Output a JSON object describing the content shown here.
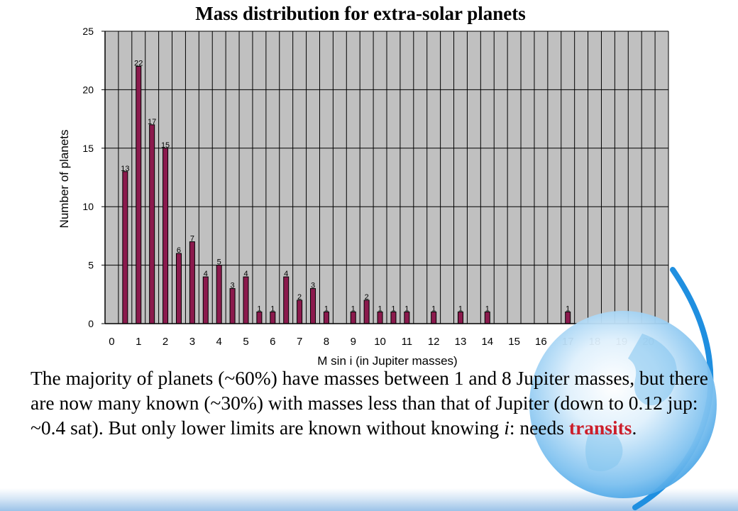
{
  "chart_data": {
    "type": "bar",
    "title": "Mass distribution for extra-solar planets",
    "xlabel": "M sin i (in Jupiter masses)",
    "ylabel": "Number of planets",
    "ylim": [
      0,
      25
    ],
    "xlim": [
      -0.25,
      20.75
    ],
    "yticks": [
      "0",
      "5",
      "10",
      "15",
      "20",
      "25"
    ],
    "xticks": [
      "0",
      "1",
      "2",
      "3",
      "4",
      "5",
      "6",
      "7",
      "8",
      "9",
      "10",
      "11",
      "12",
      "13",
      "14",
      "15",
      "16",
      "17",
      "18",
      "19",
      "20"
    ],
    "grid": true,
    "legend": "none",
    "bar_color": "#8b1a4d",
    "plot_background": "#c0c0c0",
    "bin_width": 0.5,
    "x": [
      0.5,
      1.0,
      1.5,
      2.0,
      2.5,
      3.0,
      3.5,
      4.0,
      4.5,
      5.0,
      5.5,
      6.0,
      6.5,
      7.0,
      7.5,
      8.0,
      8.5,
      9.0,
      9.5,
      10.0,
      10.5,
      11.0,
      11.5,
      12.0,
      12.5,
      13.0,
      13.5,
      14.0,
      14.5,
      15.0,
      15.5,
      16.0,
      16.5,
      17.0,
      17.5,
      18.0,
      18.5,
      19.0,
      19.5,
      20.0
    ],
    "values": [
      13,
      22,
      17,
      15,
      6,
      7,
      4,
      5,
      3,
      4,
      1,
      1,
      4,
      2,
      3,
      1,
      0,
      1,
      2,
      1,
      1,
      1,
      0,
      1,
      0,
      1,
      0,
      1,
      0,
      0,
      0,
      0,
      0,
      1,
      0,
      0,
      0,
      0,
      0,
      0
    ]
  },
  "caption": {
    "part1": "The majority of planets (~60%) have masses between 1 and 8 Jupiter masses, but there are now many known (~30%) with masses less than that of Jupiter (down to 0.12 jup: ~0.4 sat). But only lower limits are known without knowing ",
    "italic": "i",
    "part2": ": needs ",
    "highlight": "transits",
    "part3": "."
  },
  "colors": {
    "highlight": "#cc1f2b",
    "globe_blue": "#1f8fe0"
  }
}
